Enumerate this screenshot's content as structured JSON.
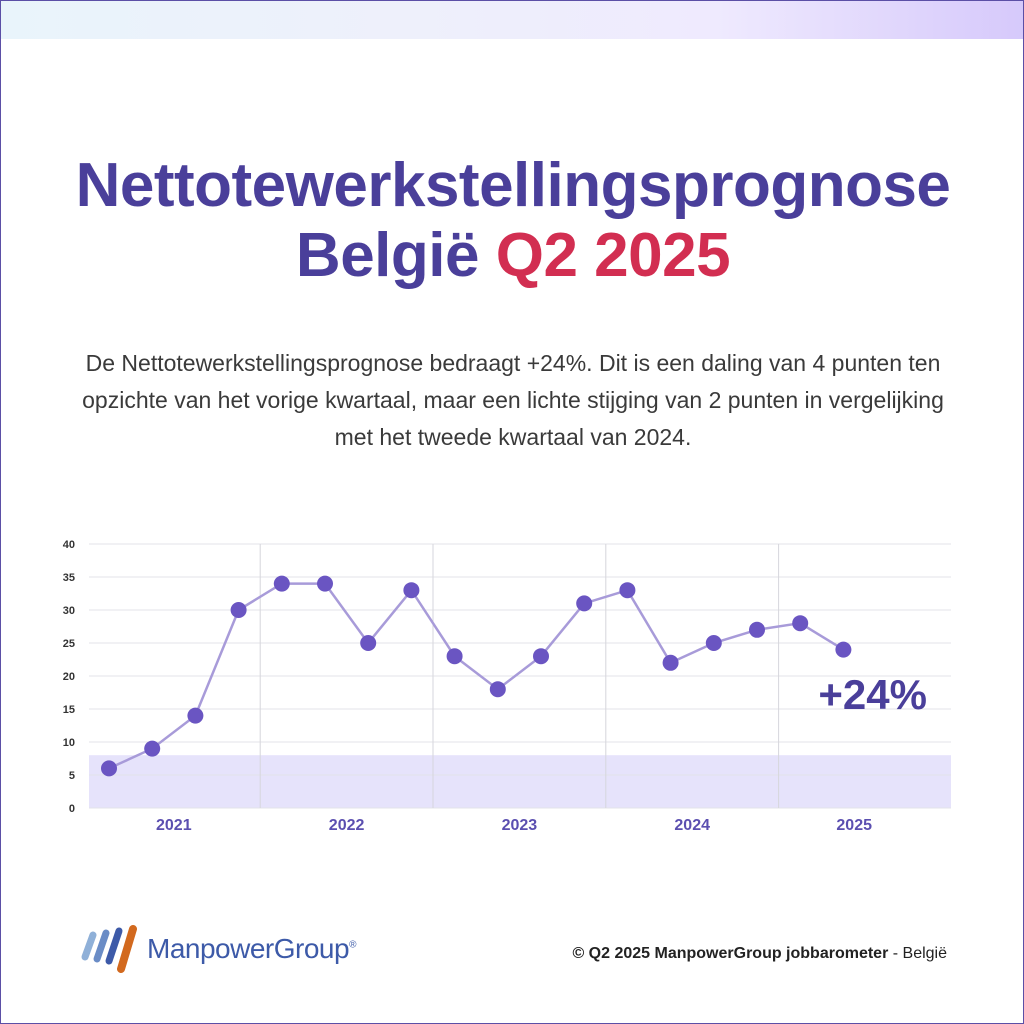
{
  "header": {
    "title_line1": "Nettotewerkstellingsprognose",
    "title_line2_country": "België",
    "title_line2_quarter": "Q2 2025"
  },
  "description": "De Nettotewerkstellingsprognose bedraagt +24%. Dit is een daling van 4 punten ten opzichte van het vorige kwartaal, maar een lichte stijging van 2 punten in vergelijking met het tweede kwartaal van 2024.",
  "chart_data": {
    "type": "line",
    "x": [
      "2021 Q1",
      "2021 Q2",
      "2021 Q3",
      "2021 Q4",
      "2022 Q1",
      "2022 Q2",
      "2022 Q3",
      "2022 Q4",
      "2023 Q1",
      "2023 Q2",
      "2023 Q3",
      "2023 Q4",
      "2024 Q1",
      "2024 Q2",
      "2024 Q3",
      "2024 Q4",
      "2025 Q1",
      "2025 Q2"
    ],
    "values": [
      6,
      9,
      14,
      30,
      34,
      34,
      25,
      33,
      23,
      18,
      23,
      31,
      33,
      22,
      25,
      27,
      28,
      24
    ],
    "year_labels": [
      "2021",
      "2022",
      "2023",
      "2024",
      "2025"
    ],
    "ylim": [
      0,
      40
    ],
    "yticks": [
      0,
      5,
      10,
      15,
      20,
      25,
      30,
      35,
      40
    ],
    "shaded_band": [
      0,
      8
    ],
    "annotation": "+24%",
    "grid": true,
    "colors": {
      "line": "#a89bd9",
      "point": "#6a55c2",
      "band": "#e6e3fb",
      "year_label": "#5b4fb0",
      "annotation": "#4a3f9a"
    }
  },
  "footer": {
    "brand": "ManpowerGroup",
    "copyright_bold": "© Q2 2025 ManpowerGroup jobbarometer",
    "copyright_rest": " - België"
  }
}
